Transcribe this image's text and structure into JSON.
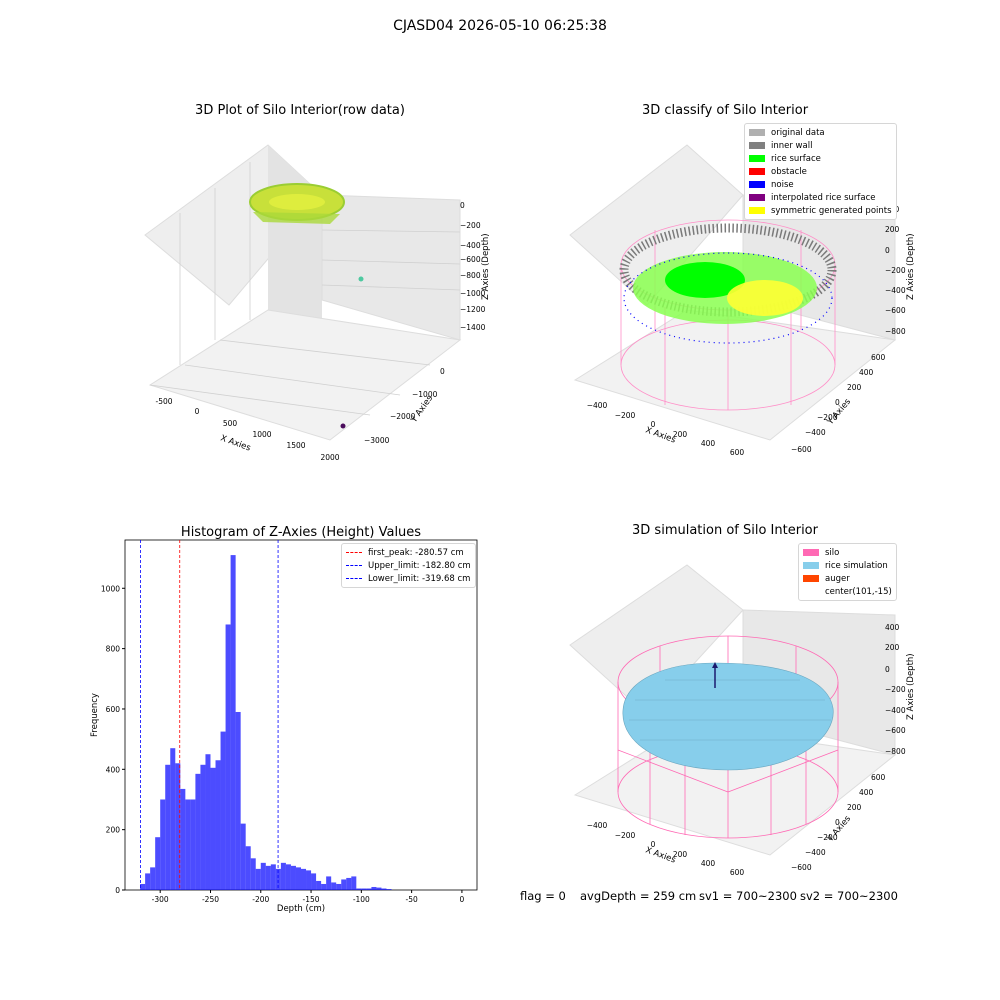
{
  "suptitle": "CJASD04 2026-05-10 06:25:38",
  "panels": {
    "raw": {
      "title": "3D Plot of Silo Interior(row data)",
      "xlabel": "X Axies",
      "ylabel": "Y Axies",
      "zlabel": "Z Axies (Depth)",
      "xticks": [
        "-500",
        "0",
        "500",
        "1000",
        "1500",
        "2000"
      ],
      "yticks": [
        "0",
        "−1000",
        "−2000",
        "−3000"
      ],
      "zticks": [
        "0",
        "−200",
        "−400",
        "−600",
        "−800",
        "−1000",
        "−1200",
        "−1400"
      ]
    },
    "classify": {
      "title": "3D classify of Silo Interior",
      "xlabel": "X Axies",
      "ylabel": "Y Axies",
      "zlabel": "Z Axies (Depth)",
      "xticks": [
        "−400",
        "−200",
        "0",
        "200",
        "400",
        "600"
      ],
      "yticks": [
        "600",
        "400",
        "200",
        "0",
        "−200",
        "−400",
        "−600"
      ],
      "zticks": [
        "400",
        "200",
        "0",
        "−200",
        "−400",
        "−600",
        "−800"
      ],
      "legend": [
        {
          "label": "original data",
          "color": "#b0b0b0"
        },
        {
          "label": "inner wall",
          "color": "#808080"
        },
        {
          "label": "rice surface",
          "color": "#00ff00"
        },
        {
          "label": "obstacle",
          "color": "#ff0000"
        },
        {
          "label": "noise",
          "color": "#0000ff"
        },
        {
          "label": "interpolated rice surface",
          "color": "#800080"
        },
        {
          "label": "symmetric generated points",
          "color": "#ffff00"
        }
      ]
    },
    "simulation": {
      "title": "3D simulation of Silo Interior",
      "xlabel": "X Axies",
      "ylabel": "Y Axies",
      "zlabel": "Z Axies (Depth)",
      "xticks": [
        "−400",
        "−200",
        "0",
        "200",
        "400",
        "600"
      ],
      "yticks": [
        "600",
        "400",
        "200",
        "0",
        "−200",
        "−400",
        "−600"
      ],
      "zticks": [
        "400",
        "200",
        "0",
        "−200",
        "−400",
        "−600",
        "−800"
      ],
      "legend": [
        {
          "label": "silo",
          "color": "#ff69b4"
        },
        {
          "label": "rice simulation",
          "color": "#87ceeb"
        },
        {
          "label": "auger",
          "color": "#ff4500"
        },
        {
          "label": "center(101,-15)",
          "color": ""
        }
      ]
    }
  },
  "chart_data": {
    "type": "bar",
    "title": "Histogram of Z-Axies (Height) Values",
    "xlabel": "Depth (cm)",
    "ylabel": "Frequency",
    "xlim": [
      -335,
      15
    ],
    "ylim": [
      0,
      1160
    ],
    "xticks": [
      -300,
      -250,
      -200,
      -150,
      -100,
      -50,
      0
    ],
    "yticks": [
      0,
      200,
      400,
      600,
      800,
      1000
    ],
    "bin_width": 5,
    "bin_starts": [
      -320,
      -315,
      -310,
      -305,
      -300,
      -295,
      -290,
      -285,
      -280,
      -275,
      -270,
      -265,
      -260,
      -255,
      -250,
      -245,
      -240,
      -235,
      -230,
      -225,
      -220,
      -215,
      -210,
      -205,
      -200,
      -195,
      -190,
      -185,
      -180,
      -175,
      -170,
      -165,
      -160,
      -155,
      -150,
      -145,
      -140,
      -135,
      -130,
      -125,
      -120,
      -115,
      -110,
      -105,
      -100,
      -95,
      -90,
      -85,
      -80,
      -75,
      -70,
      -65,
      -60,
      -55,
      -50,
      -45,
      -40,
      -35,
      -30,
      -25,
      -20,
      -15,
      -10,
      -5,
      0
    ],
    "values": [
      20,
      55,
      75,
      175,
      300,
      415,
      470,
      420,
      335,
      300,
      300,
      385,
      415,
      450,
      405,
      430,
      525,
      880,
      1110,
      590,
      220,
      145,
      105,
      70,
      90,
      80,
      85,
      70,
      90,
      85,
      80,
      75,
      70,
      65,
      55,
      30,
      20,
      45,
      25,
      20,
      35,
      40,
      45,
      5,
      5,
      5,
      10,
      8,
      5,
      3,
      0,
      0,
      0,
      0,
      0,
      0,
      0,
      0,
      0,
      0,
      0,
      0,
      0,
      0,
      0
    ],
    "bar_color": "#0000ff",
    "vlines": [
      {
        "label": "first_peak: -280.57 cm",
        "x": -280.57,
        "color": "#ff0000"
      },
      {
        "label": "Upper_limit: -182.80 cm",
        "x": -182.8,
        "color": "#0000ff"
      },
      {
        "label": "Lower_limit: -319.68 cm",
        "x": -319.68,
        "color": "#0000ff"
      }
    ],
    "legend_position": "top-right"
  },
  "footer": {
    "flag": "flag = 0",
    "avg": "avgDepth = 259 cm",
    "sv1": "sv1 = 700~2300",
    "sv2": "sv2 = 700~2300"
  }
}
